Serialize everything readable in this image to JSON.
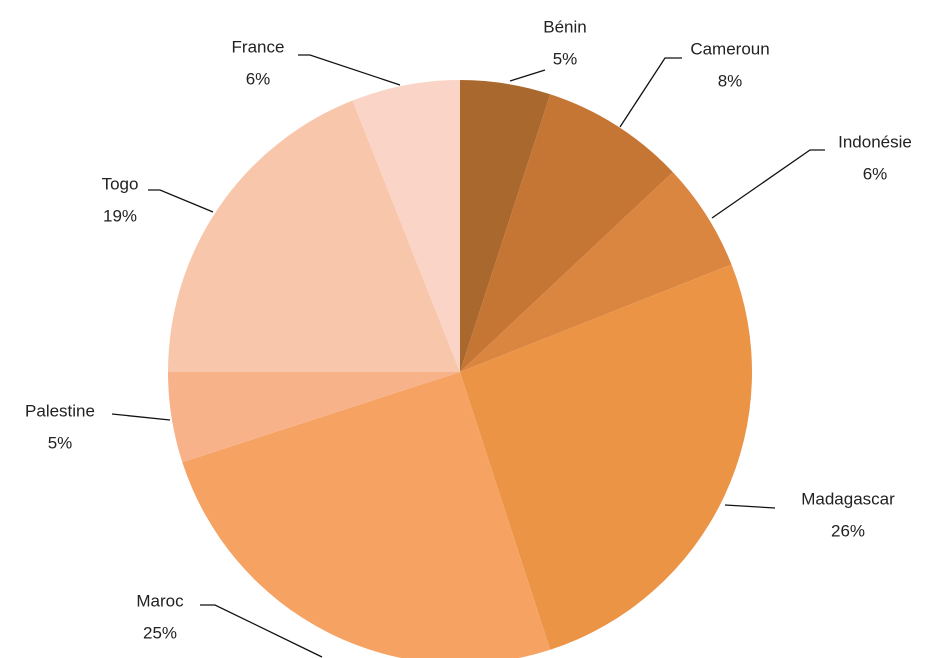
{
  "chart_data": {
    "type": "pie",
    "categories": [
      "Bénin",
      "Cameroun",
      "Indonésie",
      "Madagascar",
      "Maroc",
      "Palestine",
      "Togo",
      "France"
    ],
    "values": [
      5,
      8,
      6,
      26,
      25,
      5,
      19,
      6
    ],
    "value_labels": [
      "5%",
      "8%",
      "6%",
      "26%",
      "25%",
      "5%",
      "19%",
      "6%"
    ],
    "colors": [
      "#a9692e",
      "#c57635",
      "#da8540",
      "#ec9445",
      "#f5a263",
      "#f8b28a",
      "#f8c6aa",
      "#fad5c7"
    ]
  }
}
